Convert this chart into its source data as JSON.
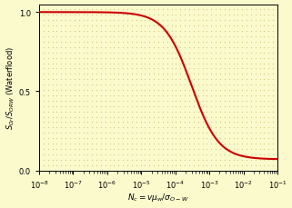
{
  "title": "",
  "xlabel": "$N_c = v\\mu_w/\\sigma_{O-W}$",
  "ylabel": "$S_{Or}/S_{ORW}$ (Waterflood)",
  "xmin": 1e-08,
  "xmax": 0.1,
  "ymin": 0.0,
  "ymax": 1.05,
  "yticks": [
    0.0,
    0.5,
    1.0
  ],
  "background_color": "#FAFACC",
  "dot_color": "#C8B464",
  "line_color": "#CC0000",
  "line_width": 1.5,
  "Nc_mid": 0.0003,
  "alpha": 1.1,
  "S_low": 1.0,
  "S_high": 0.07
}
